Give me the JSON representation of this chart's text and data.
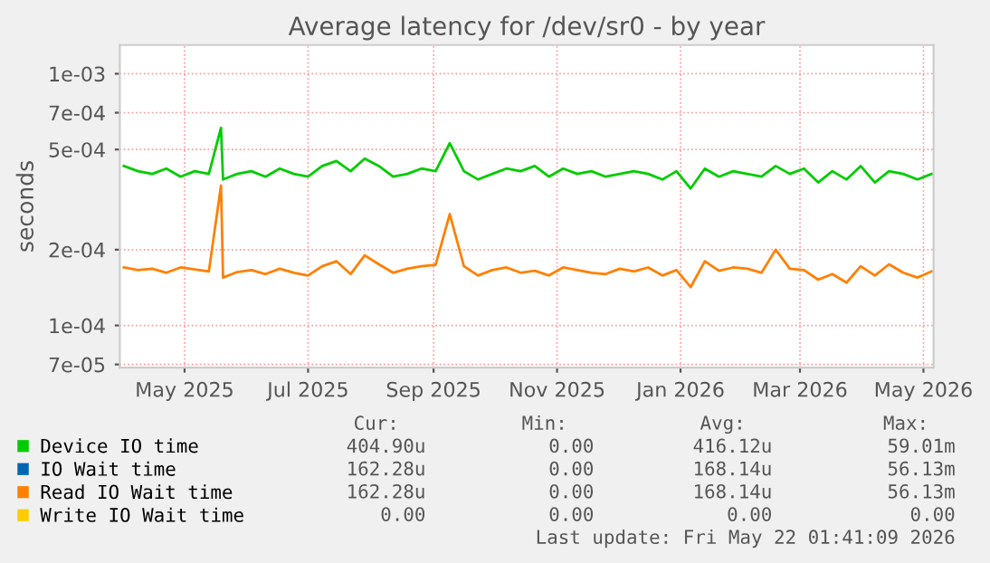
{
  "chart_data": {
    "type": "line",
    "title": "Average latency for /dev/sr0 - by year",
    "ylabel": "seconds",
    "log": "y",
    "ylim": [
      6.8e-05,
      0.0013
    ],
    "yticks": [
      {
        "value": 0.001,
        "label": "1e-03"
      },
      {
        "value": 0.0007,
        "label": "7e-04"
      },
      {
        "value": 0.0005,
        "label": "5e-04"
      },
      {
        "value": 0.0002,
        "label": "2e-04"
      },
      {
        "value": 0.0001,
        "label": "1e-04"
      },
      {
        "value": 7e-05,
        "label": "7e-05"
      }
    ],
    "xlim": [
      "2025-03-30",
      "2026-05-06"
    ],
    "xticks": [
      {
        "value": "2025-05-01",
        "label": "May 2025"
      },
      {
        "value": "2025-07-01",
        "label": "Jul 2025"
      },
      {
        "value": "2025-09-01",
        "label": "Sep 2025"
      },
      {
        "value": "2025-11-01",
        "label": "Nov 2025"
      },
      {
        "value": "2026-01-01",
        "label": "Jan 2026"
      },
      {
        "value": "2026-03-01",
        "label": "Mar 2026"
      },
      {
        "value": "2026-05-01",
        "label": "May 2026"
      }
    ],
    "grid": true,
    "legend": "bottom",
    "x": [
      "2025-04-01",
      "2025-04-08",
      "2025-04-15",
      "2025-04-22",
      "2025-04-29",
      "2025-05-06",
      "2025-05-13",
      "2025-05-19",
      "2025-05-20",
      "2025-05-27",
      "2025-06-03",
      "2025-06-10",
      "2025-06-17",
      "2025-06-24",
      "2025-07-01",
      "2025-07-08",
      "2025-07-15",
      "2025-07-22",
      "2025-07-29",
      "2025-08-05",
      "2025-08-12",
      "2025-08-19",
      "2025-08-26",
      "2025-09-02",
      "2025-09-09",
      "2025-09-16",
      "2025-09-23",
      "2025-09-30",
      "2025-10-07",
      "2025-10-14",
      "2025-10-21",
      "2025-10-28",
      "2025-11-04",
      "2025-11-11",
      "2025-11-18",
      "2025-11-25",
      "2025-12-02",
      "2025-12-09",
      "2025-12-16",
      "2025-12-23",
      "2025-12-30",
      "2026-01-06",
      "2026-01-13",
      "2026-01-20",
      "2026-01-27",
      "2026-02-03",
      "2026-02-10",
      "2026-02-17",
      "2026-02-24",
      "2026-03-03",
      "2026-03-10",
      "2026-03-17",
      "2026-03-24",
      "2026-03-31",
      "2026-04-07",
      "2026-04-14",
      "2026-04-21",
      "2026-04-28",
      "2026-05-05"
    ],
    "series": [
      {
        "name": "Device IO time",
        "color": "#00cc00",
        "values": [
          0.00043,
          0.00041,
          0.0004,
          0.00042,
          0.00039,
          0.00041,
          0.0004,
          0.00061,
          0.00038,
          0.0004,
          0.00041,
          0.00039,
          0.00042,
          0.0004,
          0.00039,
          0.00043,
          0.00045,
          0.00041,
          0.00046,
          0.00043,
          0.00039,
          0.0004,
          0.00042,
          0.00041,
          0.00053,
          0.00041,
          0.00038,
          0.0004,
          0.00042,
          0.00041,
          0.00043,
          0.00039,
          0.00042,
          0.0004,
          0.00041,
          0.00039,
          0.0004,
          0.00041,
          0.0004,
          0.00038,
          0.00041,
          0.00035,
          0.00042,
          0.00039,
          0.00041,
          0.0004,
          0.00039,
          0.00043,
          0.0004,
          0.00042,
          0.00037,
          0.00041,
          0.00038,
          0.00043,
          0.00037,
          0.00041,
          0.0004,
          0.00038,
          0.0004
        ]
      },
      {
        "name": "IO Wait time",
        "color": "#0066b3",
        "values": [
          null,
          null,
          null,
          null,
          null,
          null,
          null,
          null,
          null,
          null,
          null,
          null,
          null,
          null,
          null,
          null,
          null,
          null,
          null,
          null,
          null,
          null,
          null,
          null,
          null,
          null,
          null,
          null,
          null,
          null,
          null,
          null,
          null,
          null,
          null,
          null,
          null,
          null,
          null,
          null,
          null,
          null,
          null,
          null,
          null,
          null,
          null,
          null,
          null,
          null,
          null,
          null,
          null,
          null,
          null,
          null,
          null,
          null,
          null
        ]
      },
      {
        "name": "Read IO Wait time",
        "color": "#ff8000",
        "values": [
          0.00017,
          0.000166,
          0.000168,
          0.000162,
          0.00017,
          0.000167,
          0.000164,
          0.00036,
          0.000155,
          0.000163,
          0.000166,
          0.00016,
          0.000168,
          0.000162,
          0.000158,
          0.000172,
          0.00018,
          0.00016,
          0.00019,
          0.000175,
          0.000162,
          0.000168,
          0.000172,
          0.000174,
          0.000277,
          0.000172,
          0.000158,
          0.000166,
          0.00017,
          0.000162,
          0.000165,
          0.000158,
          0.00017,
          0.000166,
          0.000162,
          0.00016,
          0.000168,
          0.000164,
          0.00017,
          0.000158,
          0.000166,
          0.000142,
          0.00018,
          0.000165,
          0.00017,
          0.000168,
          0.000162,
          0.0002,
          0.000168,
          0.000166,
          0.000152,
          0.00016,
          0.000148,
          0.000172,
          0.000158,
          0.000175,
          0.000162,
          0.000155,
          0.000164
        ]
      },
      {
        "name": "Write IO Wait time",
        "color": "#ffcc00",
        "values": [
          null,
          null,
          null,
          null,
          null,
          null,
          null,
          null,
          null,
          null,
          null,
          null,
          null,
          null,
          null,
          null,
          null,
          null,
          null,
          null,
          null,
          null,
          null,
          null,
          null,
          null,
          null,
          null,
          null,
          null,
          null,
          null,
          null,
          null,
          null,
          null,
          null,
          null,
          null,
          null,
          null,
          null,
          null,
          null,
          null,
          null,
          null,
          null,
          null,
          null,
          null,
          null,
          null,
          null,
          null,
          null,
          null,
          null,
          null
        ]
      }
    ],
    "annotations": [
      "Cur:",
      "Min:",
      "Avg:",
      "Max:",
      "404.90u",
      "0.00",
      "416.12u",
      "59.01m",
      "162.28u",
      "0.00",
      "168.14u",
      "56.13m",
      "162.28u",
      "0.00",
      "168.14u",
      "56.13m",
      "0.00",
      "0.00",
      "0.00",
      "0.00",
      "Last update: Fri May 22 01:41:09 2026"
    ]
  }
}
